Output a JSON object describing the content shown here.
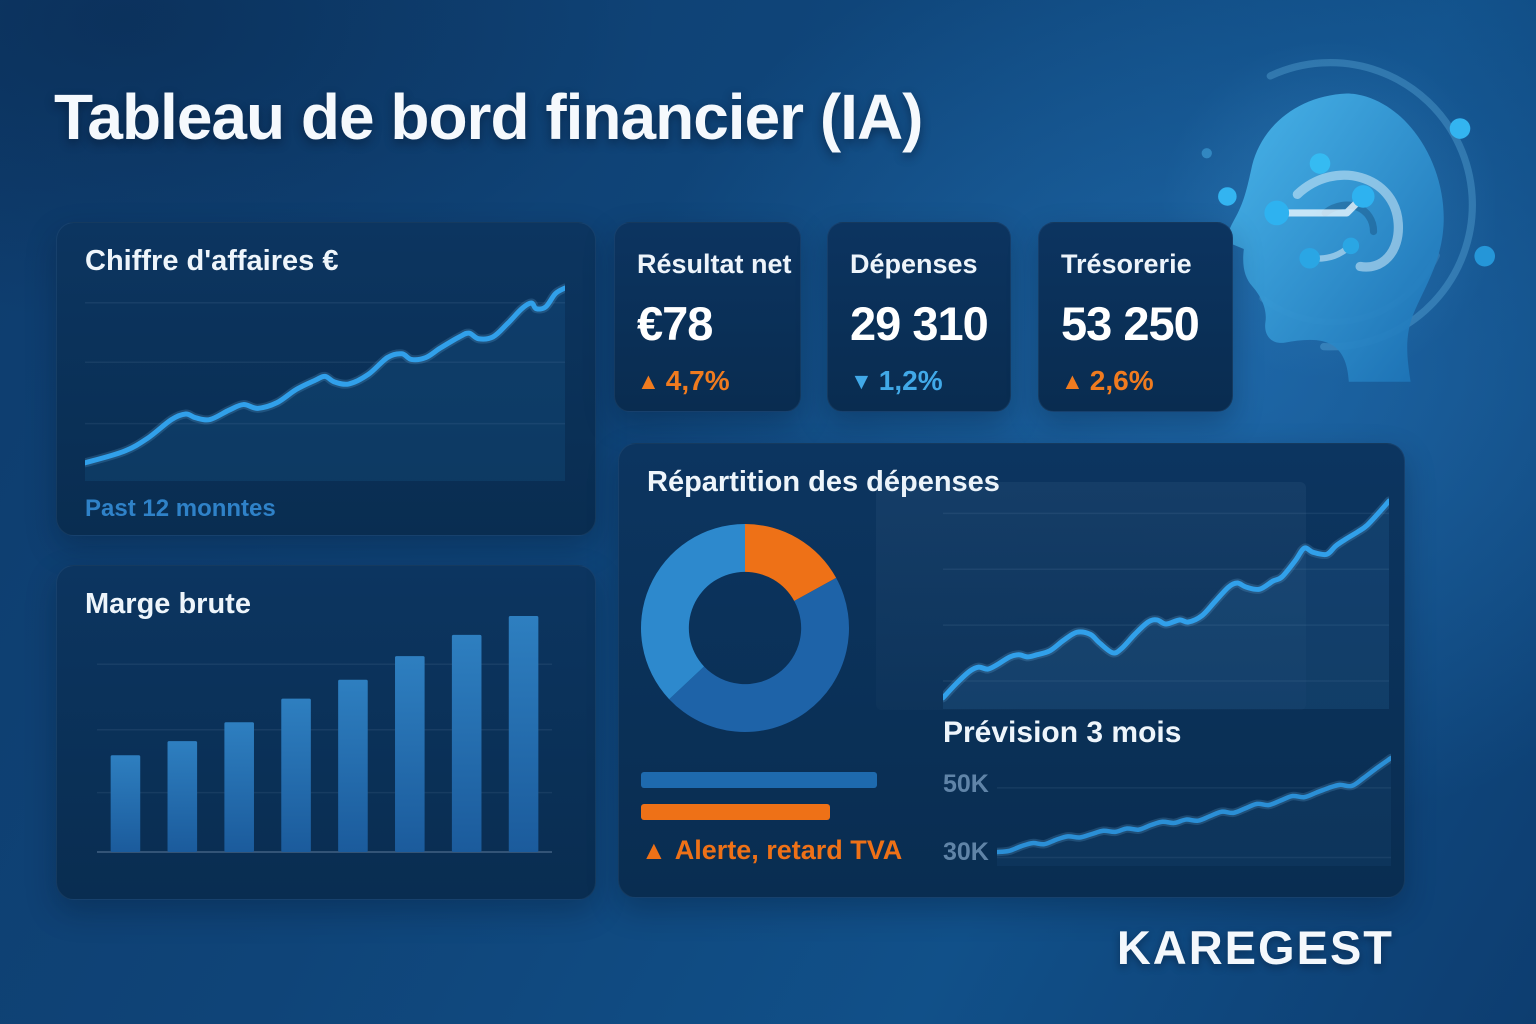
{
  "page": {
    "title": "Tableau de bord financier (IA)",
    "brand": "KAREGEST"
  },
  "palette": {
    "accent_orange": "#ee7117",
    "accent_light_blue": "#41a9e8",
    "line_blue": "#31a0ea",
    "background_navy": "#0e3c6d",
    "card_navy": "#0a3058"
  },
  "kpis": [
    {
      "label": "Résultat net",
      "value": "€78",
      "arrow": "▲",
      "delta": "4,7%",
      "delta_color": "#f07b1f"
    },
    {
      "label": "Dépenses",
      "value": "29 310",
      "arrow": "▼",
      "delta": "1,2%",
      "delta_color": "#41a9e8"
    },
    {
      "label": "Trésorerie",
      "value": "53 250",
      "arrow": "▲",
      "delta": "2,6%",
      "delta_color": "#f07b1f"
    }
  ],
  "cards": {
    "revenue": {
      "title": "Chiffre d'affaires €",
      "caption": "Past 12 monntes"
    },
    "margin": {
      "title": "Marge brute"
    },
    "breakdown": {
      "title": "Répartition des dépenses",
      "alert_icon": "▲",
      "alert": "Alerte, retard TVA",
      "bars": [
        {
          "color": "#1e6aae",
          "width_pct": 100
        },
        {
          "color": "#ee7117",
          "width_pct": 80
        }
      ]
    },
    "forecast": {
      "title": "Prévision 3 mois",
      "y_labels": [
        "50K",
        "30K"
      ]
    }
  },
  "chart_data": [
    {
      "id": "revenue",
      "type": "line",
      "title": "Chiffre d'affaires €",
      "xlabel": "Past 12 monntes",
      "ylabel": "",
      "color": "#31a0ea",
      "stroke": 5,
      "area": "rgba(49,156,232,0.10)",
      "grid": [
        10,
        40,
        71
      ],
      "points": [
        [
          0,
          7
        ],
        [
          8,
          13
        ],
        [
          13,
          20
        ],
        [
          18,
          30
        ],
        [
          21,
          33
        ],
        [
          23,
          31
        ],
        [
          26,
          30
        ],
        [
          30,
          35
        ],
        [
          33,
          38
        ],
        [
          36,
          36
        ],
        [
          40,
          39
        ],
        [
          44,
          46
        ],
        [
          48,
          51
        ],
        [
          50,
          53
        ],
        [
          52,
          50
        ],
        [
          55,
          49
        ],
        [
          59,
          54
        ],
        [
          63,
          63
        ],
        [
          66,
          65
        ],
        [
          68,
          62
        ],
        [
          71,
          63
        ],
        [
          74,
          68
        ],
        [
          78,
          74
        ],
        [
          80,
          76
        ],
        [
          82,
          73
        ],
        [
          85,
          74
        ],
        [
          88,
          81
        ],
        [
          91,
          89
        ],
        [
          93,
          92
        ],
        [
          94,
          89
        ],
        [
          96,
          90
        ],
        [
          98,
          97
        ],
        [
          100,
          100
        ]
      ]
    },
    {
      "id": "margin",
      "type": "bar",
      "title": "Marge brute",
      "categories": [
        "1",
        "2",
        "3",
        "4",
        "5",
        "6",
        "7",
        "8"
      ],
      "values": [
        41,
        47,
        55,
        65,
        73,
        83,
        92,
        100
      ],
      "ylim": [
        0,
        100
      ],
      "color_top": "#2e7fc0",
      "color_bottom": "#1b5b9c",
      "grid": [
        23,
        48,
        72
      ]
    },
    {
      "id": "expenses_donut",
      "type": "pie",
      "title": "Répartition des dépenses",
      "inner_ratio": 0.54,
      "start_angle": 0,
      "segments": [
        {
          "value": 17,
          "color": "#ee7117"
        },
        {
          "value": 46,
          "color": "#1e63a8"
        },
        {
          "value": 37,
          "color": "#2d89cd"
        }
      ]
    },
    {
      "id": "trend",
      "type": "line",
      "title": "",
      "color": "#31a0ea",
      "stroke": 5,
      "area": "rgba(64,140,205,0.14)",
      "grid": [
        9,
        35,
        61,
        87
      ],
      "points": [
        [
          0,
          3
        ],
        [
          3,
          10
        ],
        [
          6,
          16
        ],
        [
          8,
          18
        ],
        [
          10,
          17
        ],
        [
          12,
          19
        ],
        [
          15,
          23
        ],
        [
          17,
          24
        ],
        [
          19,
          23
        ],
        [
          21,
          24
        ],
        [
          24,
          26
        ],
        [
          27,
          31
        ],
        [
          30,
          35
        ],
        [
          33,
          34
        ],
        [
          35,
          30
        ],
        [
          38,
          25
        ],
        [
          40,
          27
        ],
        [
          43,
          34
        ],
        [
          46,
          40
        ],
        [
          48,
          41
        ],
        [
          50,
          39
        ],
        [
          53,
          41
        ],
        [
          55,
          40
        ],
        [
          58,
          43
        ],
        [
          61,
          50
        ],
        [
          64,
          57
        ],
        [
          66,
          59
        ],
        [
          68,
          57
        ],
        [
          71,
          56
        ],
        [
          74,
          60
        ],
        [
          76,
          62
        ],
        [
          79,
          70
        ],
        [
          81,
          76
        ],
        [
          83,
          74
        ],
        [
          86,
          73
        ],
        [
          88,
          77
        ],
        [
          90,
          80
        ],
        [
          93,
          84
        ],
        [
          95,
          87
        ],
        [
          98,
          94
        ],
        [
          100,
          99
        ]
      ]
    },
    {
      "id": "forecast",
      "type": "line",
      "title": "Prévision 3 mois",
      "ylabels": [
        "50K",
        "30K"
      ],
      "color": "#2b8fd6",
      "stroke": 4.5,
      "area": "rgba(64,140,205,0.08)",
      "grid": [
        36,
        93
      ],
      "points": [
        [
          0,
          8
        ],
        [
          3,
          9
        ],
        [
          6,
          13
        ],
        [
          9,
          16
        ],
        [
          12,
          15
        ],
        [
          15,
          19
        ],
        [
          18,
          22
        ],
        [
          21,
          21
        ],
        [
          24,
          24
        ],
        [
          27,
          27
        ],
        [
          30,
          26
        ],
        [
          33,
          29
        ],
        [
          36,
          28
        ],
        [
          39,
          32
        ],
        [
          42,
          35
        ],
        [
          45,
          34
        ],
        [
          48,
          37
        ],
        [
          51,
          36
        ],
        [
          54,
          40
        ],
        [
          57,
          44
        ],
        [
          60,
          43
        ],
        [
          63,
          47
        ],
        [
          66,
          51
        ],
        [
          69,
          50
        ],
        [
          72,
          54
        ],
        [
          75,
          58
        ],
        [
          78,
          57
        ],
        [
          81,
          61
        ],
        [
          84,
          65
        ],
        [
          87,
          68
        ],
        [
          90,
          67
        ],
        [
          93,
          74
        ],
        [
          96,
          82
        ],
        [
          100,
          92
        ]
      ]
    }
  ]
}
